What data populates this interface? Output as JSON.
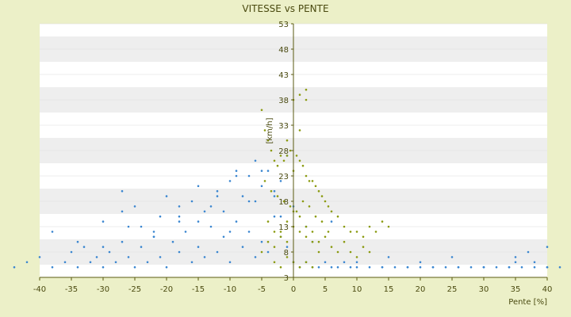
{
  "chart_data": {
    "type": "scatter",
    "title": "VITESSE vs PENTE",
    "xlabel": "Pente [%]",
    "ylabel": "[km/h]",
    "xlim": [
      -40,
      40
    ],
    "ylim": [
      3,
      53
    ],
    "x_ticks": [
      "-40",
      "-35",
      "-30",
      "-25",
      "-20",
      "-15",
      "-10",
      "-5",
      "0",
      "5",
      "10",
      "15",
      "20",
      "25",
      "30",
      "35",
      "40"
    ],
    "y_ticks": [
      "3",
      "8",
      "13",
      "18",
      "23",
      "28",
      "33",
      "38",
      "43",
      "48",
      "53"
    ],
    "grid": "horizontal bands",
    "legend": "none",
    "colors": {
      "blue_series": "#3a86d0",
      "olive_series": "#8a9a10",
      "axis": "#5a5a10",
      "band": "#eeeeee"
    },
    "series": [
      {
        "color": "#3a86d0",
        "x": [
          -44,
          -42,
          -40,
          -38,
          -36,
          -35,
          -34,
          -33,
          -32,
          -31,
          -30,
          -29,
          -28,
          -27,
          -26,
          -25,
          -24,
          -23,
          -22,
          -21,
          -20,
          -19,
          -18,
          -17,
          -16,
          -15,
          -14,
          -13,
          -12,
          -11,
          -10,
          -9,
          -8,
          -7,
          -6,
          -5,
          -4,
          -3,
          -2,
          -1,
          0,
          1,
          2,
          3,
          4,
          5,
          6,
          7,
          8,
          9,
          10,
          12,
          14,
          16,
          18,
          20,
          22,
          24,
          26,
          28,
          30,
          32,
          34,
          36,
          38,
          40,
          42,
          -30,
          -27,
          -25,
          -22,
          -20,
          -18,
          -16,
          -15,
          -13,
          -12,
          -11,
          -10,
          -9,
          -8,
          -7,
          -6,
          -5,
          -4,
          -3,
          -2,
          -1,
          15,
          20,
          25,
          30,
          35,
          37,
          40,
          -38,
          -34,
          -30,
          -26,
          -22,
          -18,
          -14,
          -10,
          -6,
          -2,
          2,
          6,
          10,
          14,
          18,
          22,
          26,
          30,
          34,
          38,
          -27,
          -24,
          -21,
          -18,
          -15,
          -12,
          -9,
          -7,
          -5,
          -3,
          0,
          3,
          35,
          40
        ],
        "y": [
          5,
          6,
          7,
          5,
          6,
          8,
          5,
          9,
          6,
          7,
          5,
          8,
          6,
          10,
          7,
          5,
          9,
          6,
          11,
          7,
          5,
          10,
          8,
          12,
          6,
          9,
          7,
          13,
          8,
          11,
          6,
          14,
          9,
          12,
          7,
          10,
          8,
          15,
          11,
          9,
          6,
          5,
          6,
          5,
          5,
          6,
          5,
          5,
          6,
          5,
          5,
          5,
          5,
          5,
          5,
          5,
          5,
          5,
          5,
          5,
          5,
          5,
          5,
          5,
          5,
          5,
          5,
          14,
          16,
          17,
          12,
          19,
          15,
          18,
          21,
          17,
          20,
          16,
          22,
          24,
          19,
          23,
          26,
          21,
          24,
          19,
          22,
          27,
          7,
          6,
          7,
          5,
          6,
          8,
          5,
          12,
          10,
          9,
          13,
          11,
          14,
          16,
          12,
          18,
          15,
          13,
          14,
          6,
          5,
          5,
          5,
          5,
          5,
          5,
          6,
          20,
          13,
          15,
          17,
          14,
          19,
          23,
          18,
          24,
          20,
          17,
          10,
          7,
          9
        ]
      },
      {
        "color": "#8a9a10",
        "x": [
          -5,
          -4.5,
          -4,
          -3.5,
          -3,
          -2.5,
          -2,
          -1.5,
          -1,
          -0.5,
          0,
          0.5,
          1,
          1.5,
          2,
          2.5,
          3,
          3.5,
          4,
          4.5,
          5,
          5.5,
          6,
          7,
          8,
          9,
          10,
          11,
          12,
          13,
          14,
          15,
          -5,
          -4,
          -3,
          -2,
          -1,
          0,
          1,
          2,
          3,
          4,
          5,
          6,
          7,
          8,
          9,
          10,
          11,
          12,
          -4.5,
          -3.5,
          -2.5,
          -1.5,
          -0.5,
          0.5,
          1.5,
          2.5,
          3.5,
          4.5,
          5.5,
          -4,
          -3,
          -2,
          -1,
          0,
          1,
          2,
          3,
          4,
          -3,
          -2,
          -1,
          0,
          1,
          2,
          3,
          -1,
          0,
          1,
          1,
          2,
          2
        ],
        "y": [
          36,
          32,
          30,
          28,
          26,
          25,
          27,
          26,
          27,
          28,
          24,
          27,
          26,
          25,
          23,
          22,
          22,
          21,
          20,
          19,
          18,
          17,
          16,
          15,
          13,
          12,
          12,
          11,
          13,
          12,
          14,
          13,
          8,
          10,
          9,
          12,
          14,
          16,
          15,
          13,
          12,
          10,
          11,
          9,
          8,
          10,
          8,
          7,
          9,
          8,
          22,
          20,
          19,
          18,
          17,
          16,
          18,
          17,
          15,
          14,
          12,
          14,
          12,
          11,
          10,
          13,
          12,
          11,
          10,
          8,
          6,
          5,
          7,
          6,
          5,
          6,
          5,
          30,
          38,
          32,
          39,
          38,
          40
        ]
      }
    ]
  }
}
